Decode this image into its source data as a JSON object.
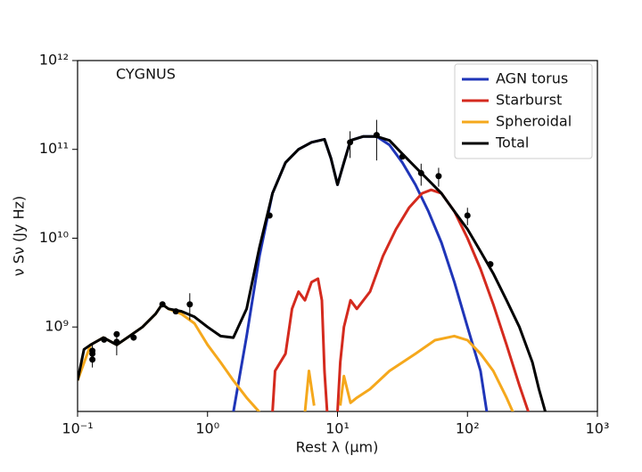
{
  "chart_data": {
    "type": "line",
    "annotation": "CYGNUS",
    "xlabel": "Rest λ (μm)",
    "ylabel": "ν Sν (Jy Hz)",
    "xscale": "log",
    "yscale": "log",
    "xlim": [
      0.1,
      1000
    ],
    "ylim": [
      112000000.0,
      1000000000000.0
    ],
    "xticks": [
      {
        "value": 0.1,
        "label": "10⁻¹"
      },
      {
        "value": 1,
        "label": "10⁰"
      },
      {
        "value": 10,
        "label": "10¹"
      },
      {
        "value": 100,
        "label": "10²"
      },
      {
        "value": 1000,
        "label": "10³"
      }
    ],
    "yticks": [
      {
        "value": 1000000000.0,
        "label": "10⁹"
      },
      {
        "value": 10000000000.0,
        "label": "10¹⁰"
      },
      {
        "value": 100000000000.0,
        "label": "10¹¹"
      },
      {
        "value": 1000000000000.0,
        "label": "10¹²"
      }
    ],
    "legend": "upper right",
    "series": [
      {
        "name": "AGN torus",
        "color": "#1f35b8",
        "x": [
          1.58,
          2,
          2.51,
          3.16,
          3.98,
          5.01,
          6.31,
          7.94,
          8.91,
          10,
          11.2,
          12.6,
          15.8,
          20,
          25.1,
          31.6,
          39.8,
          50.1,
          63.1,
          79.4,
          100,
          126,
          141
        ],
        "values": [
          110000000.0,
          790000000.0,
          6300000000.0,
          32000000000.0,
          71000000000.0,
          100000000000.0,
          120000000000.0,
          130000000000.0,
          79000000000.0,
          40000000000.0,
          71000000000.0,
          126000000000.0,
          140000000000.0,
          140000000000.0,
          112000000000.0,
          71000000000.0,
          40000000000.0,
          20000000000.0,
          8900000000.0,
          3200000000.0,
          1000000000.0,
          320000000.0,
          110000000.0
        ]
      },
      {
        "name": "Starburst",
        "color": "#d42a1e",
        "x": [
          3.16,
          3.31,
          3.98,
          4.47,
          5.01,
          5.62,
          6.31,
          7.08,
          7.59,
          7.94,
          8.32,
          9.5,
          10,
          10.5,
          11.2,
          12.6,
          14.1,
          17.8,
          22.4,
          28.2,
          35.5,
          44.7,
          52.5,
          63.1,
          79.4,
          100,
          126,
          158,
          200,
          251,
          295
        ],
        "values": [
          110000000.0,
          320000000.0,
          500000000.0,
          1600000000.0,
          2500000000.0,
          2000000000.0,
          3200000000.0,
          3500000000.0,
          2000000000.0,
          320000000.0,
          110000000.0,
          null,
          110000000.0,
          400000000.0,
          1000000000.0,
          2000000000.0,
          1600000000.0,
          2500000000.0,
          6300000000.0,
          12600000000.0,
          22000000000.0,
          32000000000.0,
          35000000000.0,
          32000000000.0,
          20000000000.0,
          10000000000.0,
          4500000000.0,
          1800000000.0,
          630000000.0,
          220000000.0,
          110000000.0
        ]
      },
      {
        "name": "Spheroidal",
        "color": "#f5a81c",
        "x": [
          0.1,
          0.126,
          0.158,
          0.2,
          0.251,
          0.316,
          0.398,
          0.447,
          0.501,
          0.631,
          0.794,
          1,
          1.26,
          1.58,
          2,
          2.51,
          3.16,
          5.62,
          6.03,
          6.61,
          9.5,
          10.5,
          11.2,
          12.6,
          14.1,
          17.8,
          25.1,
          39.8,
          56.2,
          79.4,
          100,
          126,
          158,
          200,
          224
        ],
        "values": [
          250000000.0,
          630000000.0,
          760000000.0,
          630000000.0,
          790000000.0,
          1000000000.0,
          1400000000.0,
          1800000000.0,
          1600000000.0,
          1400000000.0,
          1100000000.0,
          630000000.0,
          400000000.0,
          250000000.0,
          160000000.0,
          110000000.0,
          null,
          110000000.0,
          320000000.0,
          130000000.0,
          null,
          130000000.0,
          280000000.0,
          140000000.0,
          160000000.0,
          200000000.0,
          320000000.0,
          500000000.0,
          710000000.0,
          790000000.0,
          710000000.0,
          500000000.0,
          320000000.0,
          160000000.0,
          110000000.0
        ]
      },
      {
        "name": "Total",
        "color": "#000000",
        "x": [
          0.1,
          0.112,
          0.126,
          0.158,
          0.2,
          0.251,
          0.316,
          0.398,
          0.447,
          0.501,
          0.631,
          0.794,
          1,
          1.26,
          1.58,
          2,
          2.51,
          3.16,
          3.98,
          5.01,
          6.31,
          7.94,
          8.91,
          10,
          11.2,
          12.6,
          15.8,
          20,
          25.1,
          31.6,
          39.8,
          50.1,
          63.1,
          79.4,
          100,
          126,
          158,
          200,
          251,
          316,
          355,
          398
        ],
        "values": [
          250000000.0,
          560000000.0,
          630000000.0,
          760000000.0,
          630000000.0,
          790000000.0,
          1000000000.0,
          1400000000.0,
          1800000000.0,
          1600000000.0,
          1500000000.0,
          1300000000.0,
          1000000000.0,
          790000000.0,
          760000000.0,
          1600000000.0,
          7900000000.0,
          32000000000.0,
          71000000000.0,
          100000000000.0,
          120000000000.0,
          130000000000.0,
          79000000000.0,
          40000000000.0,
          71000000000.0,
          126000000000.0,
          140000000000.0,
          140000000000.0,
          126000000000.0,
          89000000000.0,
          63000000000.0,
          45000000000.0,
          32000000000.0,
          20000000000.0,
          12600000000.0,
          7100000000.0,
          4000000000.0,
          2000000000.0,
          1000000000.0,
          400000000.0,
          200000000.0,
          110000000.0
        ]
      }
    ],
    "points": {
      "color": "#000000",
      "x": [
        0.13,
        0.13,
        0.13,
        0.16,
        0.2,
        0.2,
        0.27,
        0.45,
        0.57,
        0.73,
        3,
        12.5,
        20,
        31.6,
        44,
        60,
        100,
        150
      ],
      "values": [
        500000000.0,
        430000000.0,
        540000000.0,
        720000000.0,
        830000000.0,
        680000000.0,
        760000000.0,
        1800000000.0,
        1500000000.0,
        1800000000.0,
        18000000000.0,
        120000000000.0,
        145000000000.0,
        83000000000.0,
        54000000000.0,
        50000000000.0,
        18000000000.0,
        5100000000.0
      ],
      "errors": [
        150000000.0,
        null,
        null,
        null,
        null,
        200000000.0,
        null,
        null,
        null,
        600000000.0,
        null,
        40000000000.0,
        70000000000.0,
        null,
        15000000000.0,
        12000000000.0,
        4000000000.0,
        null
      ]
    }
  }
}
